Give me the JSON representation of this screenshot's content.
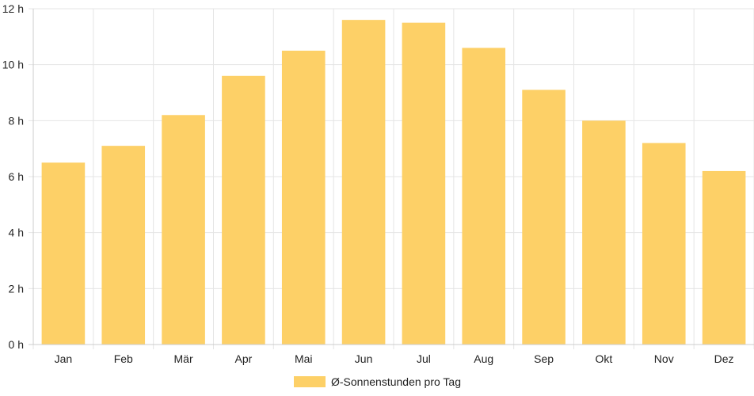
{
  "chart_data": {
    "type": "bar",
    "categories": [
      "Jan",
      "Feb",
      "Mär",
      "Apr",
      "Mai",
      "Jun",
      "Jul",
      "Aug",
      "Sep",
      "Okt",
      "Nov",
      "Dez"
    ],
    "series": [
      {
        "name": "Ø-Sonnenstunden pro Tag",
        "values": [
          6.5,
          7.1,
          8.2,
          9.6,
          10.5,
          11.6,
          11.5,
          10.6,
          9.1,
          8.0,
          7.2,
          6.2
        ]
      }
    ],
    "yunit": "h",
    "ylim": [
      0,
      12
    ],
    "yticks": [
      0,
      2,
      4,
      6,
      8,
      10,
      12
    ],
    "ytick_labels": [
      "0 h",
      "2 h",
      "4 h",
      "6 h",
      "8 h",
      "10 h",
      "12 h"
    ],
    "grid": true,
    "legend_position": "bottom",
    "colors": {
      "bar": "#fdd067",
      "grid": "#e5e5e5",
      "axis": "#cccccc",
      "text": "#222222"
    }
  }
}
